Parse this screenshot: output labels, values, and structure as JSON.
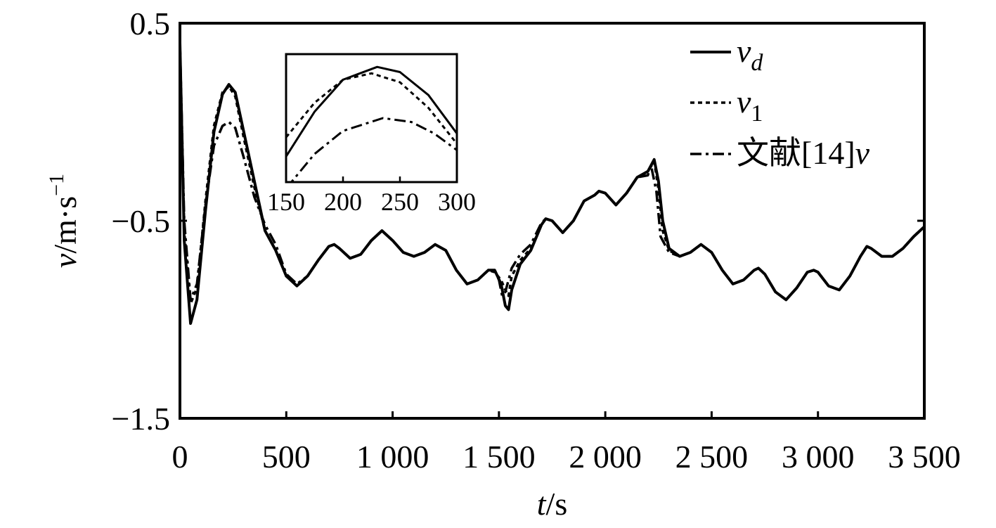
{
  "chart_data": {
    "type": "line",
    "xlabel": {
      "var": "t",
      "unit": "/s"
    },
    "ylabel": {
      "var": "v",
      "unit": "/m·s",
      "sup": "−1"
    },
    "xlim": [
      0,
      3500
    ],
    "ylim": [
      -1.5,
      0.5
    ],
    "x_ticks": [
      {
        "value": 0,
        "label": "0"
      },
      {
        "value": 500,
        "label": "500"
      },
      {
        "value": 1000,
        "label": "1 000"
      },
      {
        "value": 1500,
        "label": "1 500"
      },
      {
        "value": 2000,
        "label": "2 000"
      },
      {
        "value": 2500,
        "label": "2 500"
      },
      {
        "value": 3000,
        "label": "3 000"
      },
      {
        "value": 3500,
        "label": "3 500"
      }
    ],
    "y_ticks": [
      {
        "value": 0.5,
        "label": "0.5"
      },
      {
        "value": -0.5,
        "label": "−0.5"
      },
      {
        "value": -1.5,
        "label": "−1.5"
      }
    ],
    "grid": false,
    "legend_position": "top-right",
    "legend": [
      {
        "base": "v",
        "sub": "d",
        "sub_italic": true,
        "style": "solid"
      },
      {
        "base": "v",
        "sub": "1",
        "sub_italic": false,
        "style": "dotted"
      },
      {
        "prefix": "文献[14]",
        "base": "v",
        "sub": "",
        "sub_italic": false,
        "style": "dashdot"
      }
    ],
    "series": [
      {
        "style": "solid",
        "points": [
          [
            0,
            0.4
          ],
          [
            20,
            -0.6
          ],
          [
            50,
            -1.02
          ],
          [
            80,
            -0.9
          ],
          [
            120,
            -0.45
          ],
          [
            160,
            -0.05
          ],
          [
            200,
            0.14
          ],
          [
            230,
            0.19
          ],
          [
            260,
            0.15
          ],
          [
            300,
            -0.05
          ],
          [
            350,
            -0.3
          ],
          [
            400,
            -0.55
          ],
          [
            450,
            -0.65
          ],
          [
            500,
            -0.78
          ],
          [
            550,
            -0.83
          ],
          [
            600,
            -0.78
          ],
          [
            650,
            -0.7
          ],
          [
            700,
            -0.63
          ],
          [
            725,
            -0.62
          ],
          [
            750,
            -0.64
          ],
          [
            800,
            -0.69
          ],
          [
            850,
            -0.67
          ],
          [
            900,
            -0.6
          ],
          [
            950,
            -0.55
          ],
          [
            1000,
            -0.6
          ],
          [
            1050,
            -0.66
          ],
          [
            1100,
            -0.68
          ],
          [
            1150,
            -0.66
          ],
          [
            1200,
            -0.62
          ],
          [
            1250,
            -0.65
          ],
          [
            1300,
            -0.75
          ],
          [
            1350,
            -0.82
          ],
          [
            1400,
            -0.8
          ],
          [
            1450,
            -0.75
          ],
          [
            1480,
            -0.75
          ],
          [
            1510,
            -0.82
          ],
          [
            1530,
            -0.93
          ],
          [
            1545,
            -0.95
          ],
          [
            1560,
            -0.85
          ],
          [
            1600,
            -0.72
          ],
          [
            1650,
            -0.65
          ],
          [
            1700,
            -0.52
          ],
          [
            1720,
            -0.49
          ],
          [
            1750,
            -0.5
          ],
          [
            1800,
            -0.56
          ],
          [
            1850,
            -0.5
          ],
          [
            1900,
            -0.4
          ],
          [
            1950,
            -0.37
          ],
          [
            1970,
            -0.35
          ],
          [
            2000,
            -0.36
          ],
          [
            2050,
            -0.42
          ],
          [
            2100,
            -0.36
          ],
          [
            2150,
            -0.28
          ],
          [
            2200,
            -0.25
          ],
          [
            2230,
            -0.19
          ],
          [
            2250,
            -0.3
          ],
          [
            2270,
            -0.5
          ],
          [
            2300,
            -0.64
          ],
          [
            2350,
            -0.68
          ],
          [
            2400,
            -0.66
          ],
          [
            2450,
            -0.62
          ],
          [
            2500,
            -0.66
          ],
          [
            2550,
            -0.75
          ],
          [
            2600,
            -0.82
          ],
          [
            2650,
            -0.8
          ],
          [
            2700,
            -0.75
          ],
          [
            2720,
            -0.74
          ],
          [
            2750,
            -0.77
          ],
          [
            2800,
            -0.86
          ],
          [
            2850,
            -0.9
          ],
          [
            2900,
            -0.84
          ],
          [
            2950,
            -0.76
          ],
          [
            2980,
            -0.75
          ],
          [
            3000,
            -0.76
          ],
          [
            3050,
            -0.83
          ],
          [
            3100,
            -0.85
          ],
          [
            3150,
            -0.78
          ],
          [
            3200,
            -0.68
          ],
          [
            3230,
            -0.63
          ],
          [
            3250,
            -0.64
          ],
          [
            3300,
            -0.68
          ],
          [
            3350,
            -0.68
          ],
          [
            3400,
            -0.64
          ],
          [
            3450,
            -0.58
          ],
          [
            3500,
            -0.53
          ]
        ]
      },
      {
        "style": "dotted",
        "points": [
          [
            0,
            0.4
          ],
          [
            20,
            -0.55
          ],
          [
            50,
            -0.92
          ],
          [
            80,
            -0.84
          ],
          [
            120,
            -0.4
          ],
          [
            160,
            -0.02
          ],
          [
            200,
            0.15
          ],
          [
            230,
            0.18
          ],
          [
            260,
            0.13
          ],
          [
            300,
            -0.08
          ],
          [
            350,
            -0.33
          ],
          [
            400,
            -0.55
          ],
          [
            450,
            -0.65
          ],
          [
            500,
            -0.78
          ],
          [
            550,
            -0.83
          ],
          [
            600,
            -0.78
          ],
          [
            650,
            -0.7
          ],
          [
            700,
            -0.63
          ],
          [
            725,
            -0.62
          ],
          [
            750,
            -0.64
          ],
          [
            800,
            -0.69
          ],
          [
            850,
            -0.67
          ],
          [
            900,
            -0.6
          ],
          [
            950,
            -0.55
          ],
          [
            1000,
            -0.6
          ],
          [
            1050,
            -0.66
          ],
          [
            1100,
            -0.68
          ],
          [
            1150,
            -0.66
          ],
          [
            1200,
            -0.62
          ],
          [
            1250,
            -0.65
          ],
          [
            1300,
            -0.75
          ],
          [
            1350,
            -0.82
          ],
          [
            1400,
            -0.8
          ],
          [
            1450,
            -0.75
          ],
          [
            1480,
            -0.76
          ],
          [
            1510,
            -0.8
          ],
          [
            1530,
            -0.85
          ],
          [
            1545,
            -0.88
          ],
          [
            1560,
            -0.78
          ],
          [
            1600,
            -0.7
          ],
          [
            1650,
            -0.64
          ],
          [
            1700,
            -0.52
          ],
          [
            1720,
            -0.49
          ],
          [
            1750,
            -0.5
          ],
          [
            1800,
            -0.56
          ],
          [
            1850,
            -0.5
          ],
          [
            1900,
            -0.4
          ],
          [
            1950,
            -0.37
          ],
          [
            1970,
            -0.35
          ],
          [
            2000,
            -0.36
          ],
          [
            2050,
            -0.42
          ],
          [
            2100,
            -0.36
          ],
          [
            2150,
            -0.28
          ],
          [
            2200,
            -0.25
          ],
          [
            2230,
            -0.2
          ],
          [
            2250,
            -0.34
          ],
          [
            2270,
            -0.55
          ],
          [
            2300,
            -0.65
          ],
          [
            2350,
            -0.68
          ],
          [
            2400,
            -0.66
          ],
          [
            2450,
            -0.62
          ],
          [
            2500,
            -0.66
          ],
          [
            2550,
            -0.75
          ],
          [
            2600,
            -0.82
          ],
          [
            2650,
            -0.8
          ],
          [
            2700,
            -0.75
          ],
          [
            2720,
            -0.74
          ],
          [
            2750,
            -0.77
          ],
          [
            2800,
            -0.86
          ],
          [
            2850,
            -0.9
          ],
          [
            2900,
            -0.84
          ],
          [
            2950,
            -0.76
          ],
          [
            2980,
            -0.75
          ],
          [
            3000,
            -0.76
          ],
          [
            3050,
            -0.83
          ],
          [
            3100,
            -0.85
          ],
          [
            3150,
            -0.78
          ],
          [
            3200,
            -0.68
          ],
          [
            3230,
            -0.63
          ],
          [
            3250,
            -0.64
          ],
          [
            3300,
            -0.68
          ],
          [
            3350,
            -0.68
          ],
          [
            3400,
            -0.64
          ],
          [
            3450,
            -0.58
          ],
          [
            3500,
            -0.53
          ]
        ]
      },
      {
        "style": "dashdot",
        "points": [
          [
            0,
            0.4
          ],
          [
            20,
            -0.5
          ],
          [
            50,
            -0.9
          ],
          [
            80,
            -0.82
          ],
          [
            120,
            -0.42
          ],
          [
            160,
            -0.12
          ],
          [
            200,
            -0.02
          ],
          [
            230,
            0.0
          ],
          [
            260,
            -0.03
          ],
          [
            300,
            -0.18
          ],
          [
            350,
            -0.38
          ],
          [
            400,
            -0.52
          ],
          [
            450,
            -0.62
          ],
          [
            500,
            -0.77
          ],
          [
            550,
            -0.82
          ],
          [
            600,
            -0.78
          ],
          [
            650,
            -0.7
          ],
          [
            700,
            -0.63
          ],
          [
            725,
            -0.62
          ],
          [
            750,
            -0.64
          ],
          [
            800,
            -0.69
          ],
          [
            850,
            -0.67
          ],
          [
            900,
            -0.6
          ],
          [
            950,
            -0.55
          ],
          [
            1000,
            -0.6
          ],
          [
            1050,
            -0.66
          ],
          [
            1100,
            -0.68
          ],
          [
            1150,
            -0.66
          ],
          [
            1200,
            -0.62
          ],
          [
            1250,
            -0.65
          ],
          [
            1300,
            -0.75
          ],
          [
            1350,
            -0.82
          ],
          [
            1400,
            -0.8
          ],
          [
            1450,
            -0.75
          ],
          [
            1480,
            -0.75
          ],
          [
            1500,
            -0.8
          ],
          [
            1515,
            -0.88
          ],
          [
            1530,
            -0.86
          ],
          [
            1545,
            -0.8
          ],
          [
            1560,
            -0.74
          ],
          [
            1600,
            -0.67
          ],
          [
            1650,
            -0.62
          ],
          [
            1700,
            -0.51
          ],
          [
            1720,
            -0.49
          ],
          [
            1750,
            -0.5
          ],
          [
            1800,
            -0.56
          ],
          [
            1850,
            -0.5
          ],
          [
            1900,
            -0.4
          ],
          [
            1950,
            -0.37
          ],
          [
            1970,
            -0.35
          ],
          [
            2000,
            -0.36
          ],
          [
            2050,
            -0.42
          ],
          [
            2100,
            -0.36
          ],
          [
            2150,
            -0.28
          ],
          [
            2200,
            -0.27
          ],
          [
            2215,
            -0.22
          ],
          [
            2240,
            -0.35
          ],
          [
            2260,
            -0.58
          ],
          [
            2300,
            -0.66
          ],
          [
            2350,
            -0.68
          ],
          [
            2400,
            -0.66
          ],
          [
            2450,
            -0.62
          ],
          [
            2500,
            -0.66
          ],
          [
            2550,
            -0.75
          ],
          [
            2600,
            -0.82
          ],
          [
            2650,
            -0.8
          ],
          [
            2700,
            -0.75
          ],
          [
            2720,
            -0.74
          ],
          [
            2750,
            -0.77
          ],
          [
            2800,
            -0.86
          ],
          [
            2850,
            -0.9
          ],
          [
            2900,
            -0.84
          ],
          [
            2950,
            -0.76
          ],
          [
            2980,
            -0.75
          ],
          [
            3000,
            -0.76
          ],
          [
            3050,
            -0.83
          ],
          [
            3100,
            -0.85
          ],
          [
            3150,
            -0.78
          ],
          [
            3200,
            -0.68
          ],
          [
            3230,
            -0.63
          ],
          [
            3250,
            -0.64
          ],
          [
            3300,
            -0.68
          ],
          [
            3350,
            -0.68
          ],
          [
            3400,
            -0.64
          ],
          [
            3450,
            -0.58
          ],
          [
            3500,
            -0.53
          ]
        ]
      }
    ],
    "inset": {
      "xlim": [
        150,
        300
      ],
      "x_ticks": [
        {
          "value": 150,
          "label": "150"
        },
        {
          "value": 200,
          "label": "200"
        },
        {
          "value": 250,
          "label": "250"
        },
        {
          "value": 300,
          "label": "300"
        }
      ],
      "series": [
        {
          "style": "solid",
          "points": [
            [
              150,
              0.2
            ],
            [
              175,
              0.55
            ],
            [
              200,
              0.8
            ],
            [
              230,
              0.9
            ],
            [
              250,
              0.86
            ],
            [
              275,
              0.68
            ],
            [
              300,
              0.38
            ]
          ]
        },
        {
          "style": "dotted",
          "points": [
            [
              150,
              0.35
            ],
            [
              175,
              0.62
            ],
            [
              200,
              0.8
            ],
            [
              225,
              0.85
            ],
            [
              250,
              0.78
            ],
            [
              275,
              0.58
            ],
            [
              300,
              0.3
            ]
          ]
        },
        {
          "style": "dashdot",
          "points": [
            [
              150,
              -0.05
            ],
            [
              175,
              0.22
            ],
            [
              200,
              0.4
            ],
            [
              235,
              0.5
            ],
            [
              260,
              0.47
            ],
            [
              280,
              0.38
            ],
            [
              300,
              0.25
            ]
          ]
        }
      ]
    }
  }
}
